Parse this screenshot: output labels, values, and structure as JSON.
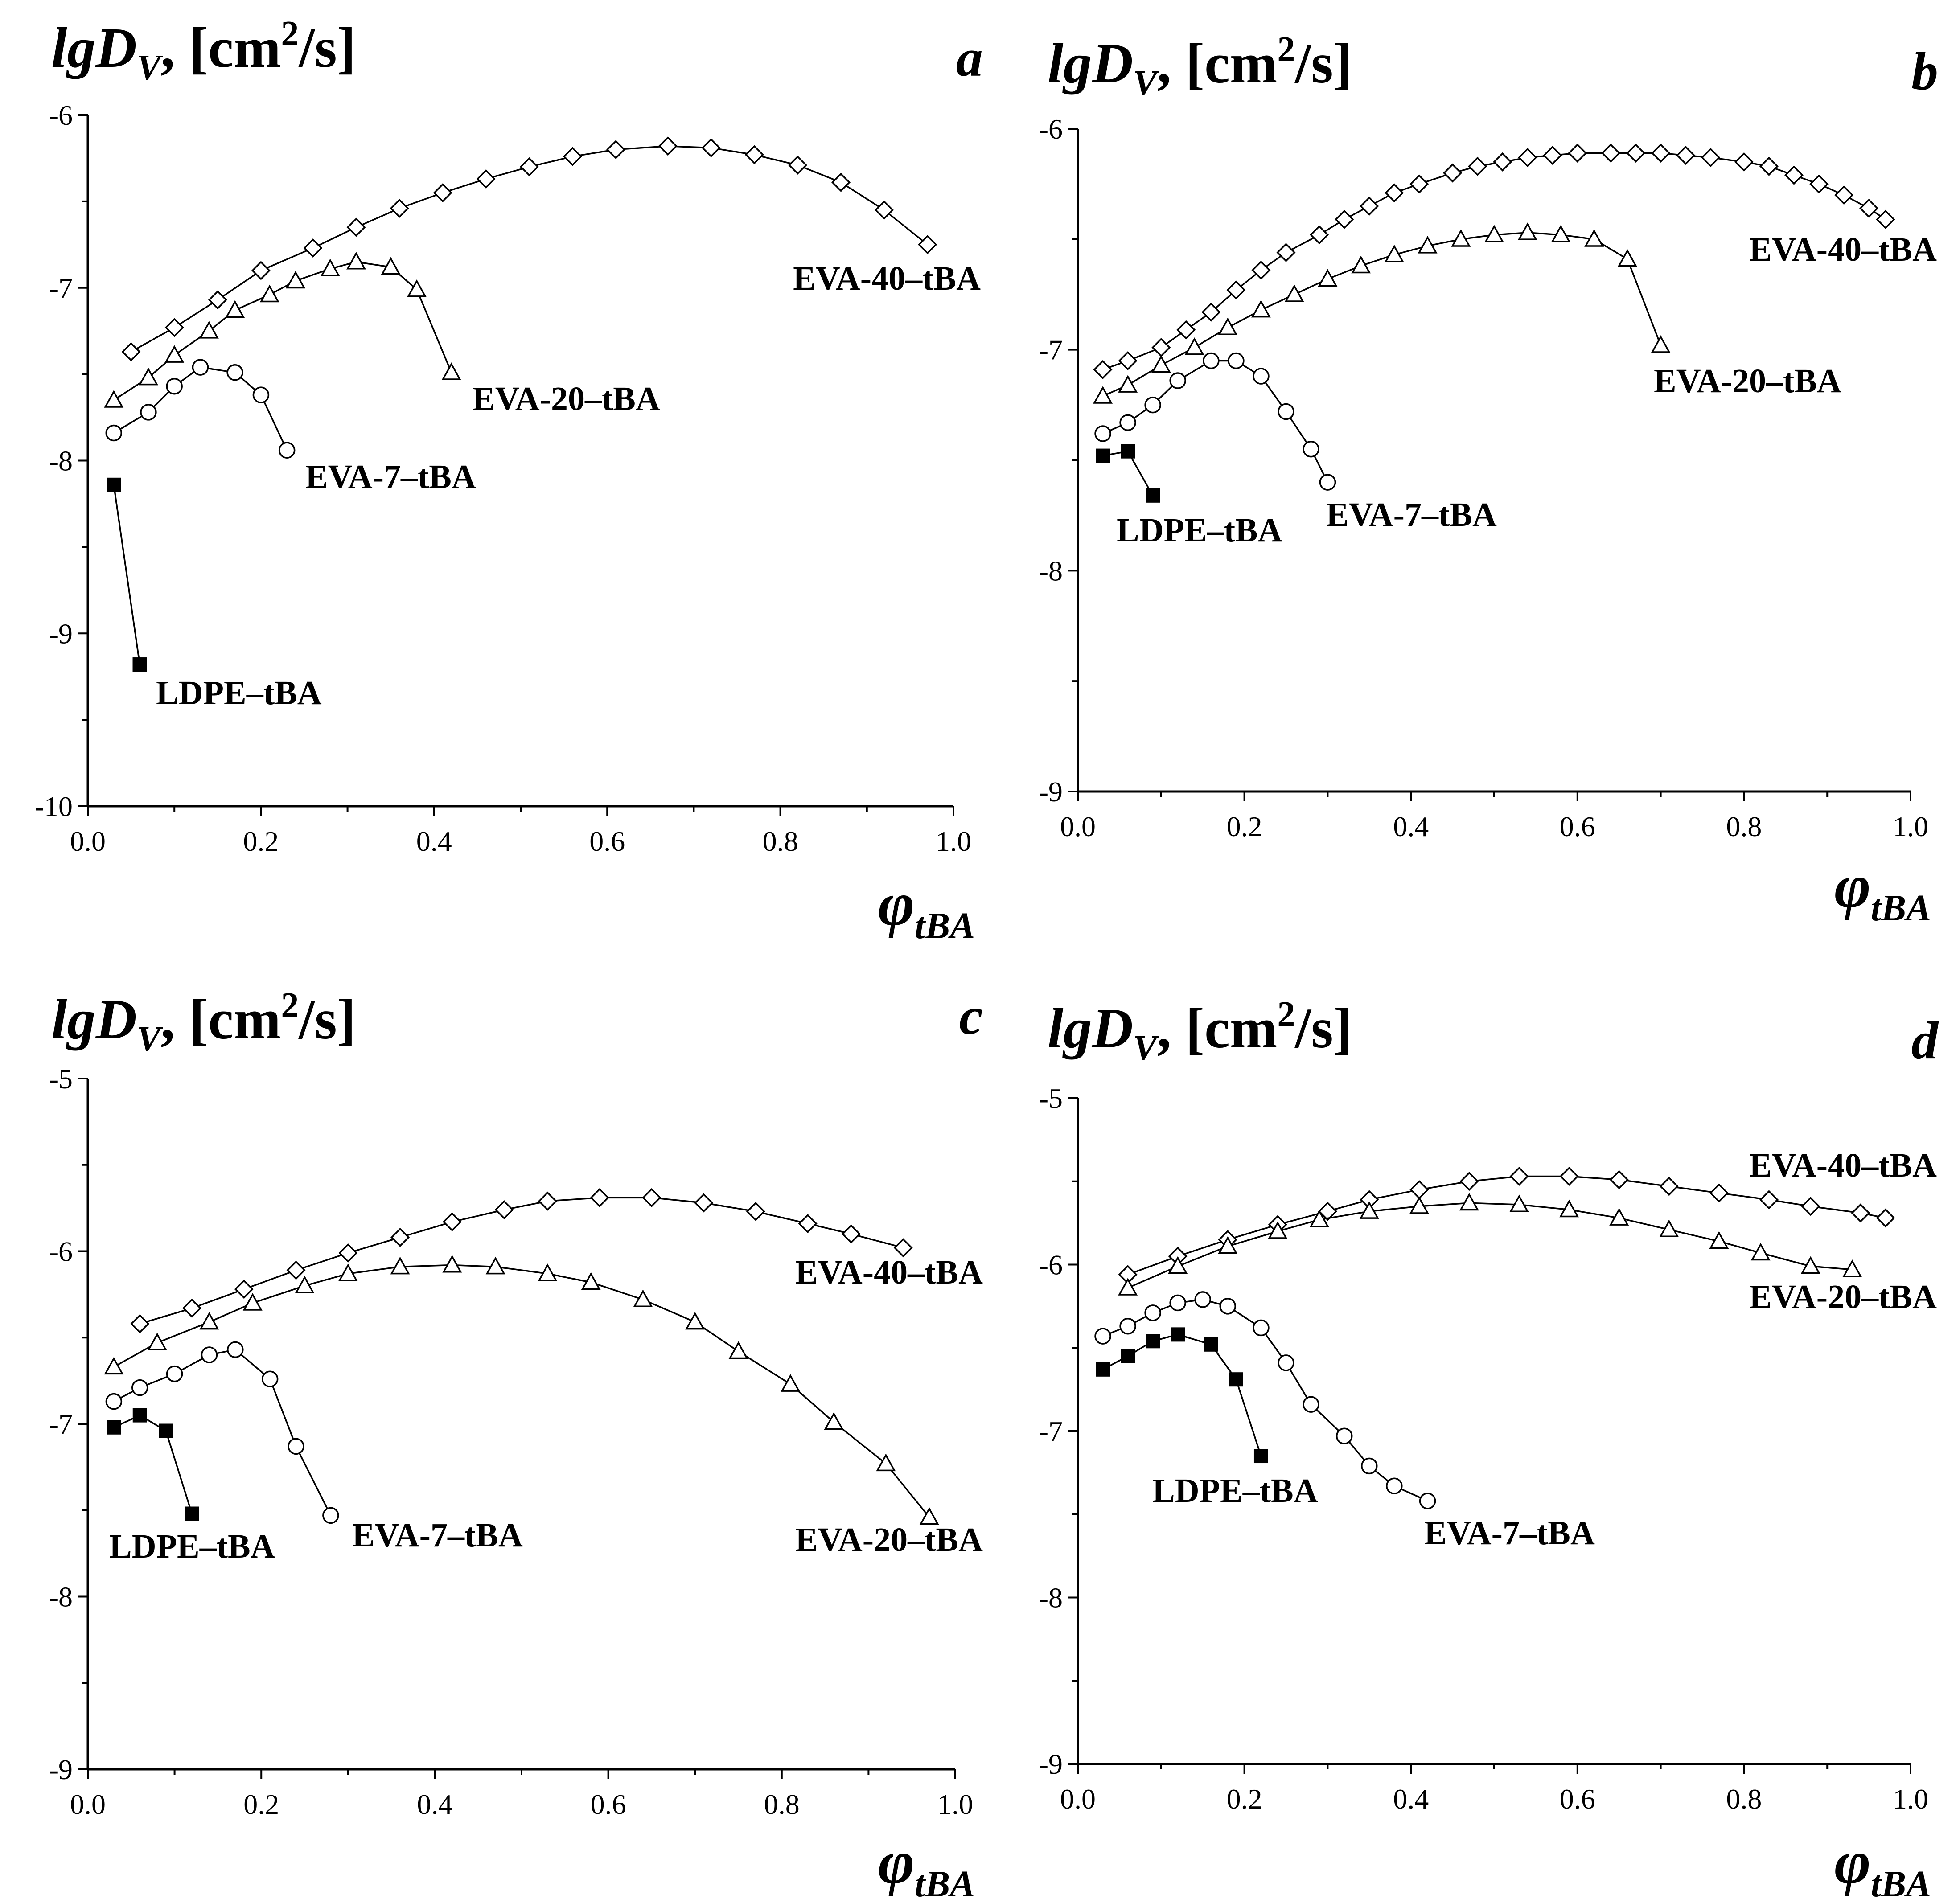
{
  "figure": {
    "x_symbol": "φ",
    "x_subscript": "tBA"
  },
  "chart_data": [
    {
      "type": "line",
      "panel": "a",
      "ylabel": {
        "main": "lgD",
        "sub": "V",
        "unit_open": ", [cm",
        "sup": "2",
        "unit_close": "/s]"
      },
      "xlabel": {
        "main": "φ",
        "sub": "tBA"
      },
      "xlim": [
        0.0,
        1.0
      ],
      "ylim": [
        -10,
        -6
      ],
      "xticks": [
        "0.0",
        "0.2",
        "0.4",
        "0.6",
        "0.8",
        "1.0"
      ],
      "yticks": [
        "-10",
        "-9",
        "-8",
        "-7",
        "-6"
      ],
      "series": [
        {
          "name": "EVA-40–tBA",
          "marker": "diamond",
          "x": [
            0.05,
            0.1,
            0.15,
            0.2,
            0.26,
            0.31,
            0.36,
            0.41,
            0.46,
            0.51,
            0.56,
            0.61,
            0.67,
            0.72,
            0.77,
            0.82,
            0.87,
            0.92,
            0.97
          ],
          "y": [
            -7.37,
            -7.23,
            -7.07,
            -6.9,
            -6.77,
            -6.65,
            -6.54,
            -6.45,
            -6.37,
            -6.3,
            -6.24,
            -6.2,
            -6.18,
            -6.19,
            -6.23,
            -6.29,
            -6.39,
            -6.55,
            -6.75
          ]
        },
        {
          "name": "EVA-20–tBA",
          "marker": "triangle",
          "x": [
            0.03,
            0.07,
            0.1,
            0.14,
            0.17,
            0.21,
            0.24,
            0.28,
            0.31,
            0.35,
            0.38,
            0.42
          ],
          "y": [
            -7.65,
            -7.52,
            -7.39,
            -7.25,
            -7.13,
            -7.04,
            -6.96,
            -6.89,
            -6.85,
            -6.88,
            -7.01,
            -7.49
          ]
        },
        {
          "name": "EVA-7–tBA",
          "marker": "circle",
          "x": [
            0.03,
            0.07,
            0.1,
            0.13,
            0.17,
            0.2,
            0.23
          ],
          "y": [
            -7.84,
            -7.72,
            -7.57,
            -7.46,
            -7.49,
            -7.62,
            -7.94
          ]
        },
        {
          "name": "LDPE–tBA",
          "marker": "square-filled",
          "x": [
            0.03,
            0.06
          ],
          "y": [
            -8.14,
            -9.18
          ]
        }
      ]
    },
    {
      "type": "line",
      "panel": "b",
      "ylabel": {
        "main": "lgD",
        "sub": "V",
        "unit_open": ", [cm",
        "sup": "2",
        "unit_close": "/s]"
      },
      "xlabel": {
        "main": "φ",
        "sub": "tBA"
      },
      "xlim": [
        0.0,
        1.0
      ],
      "ylim": [
        -9,
        -6
      ],
      "xticks": [
        "0.0",
        "0.2",
        "0.4",
        "0.6",
        "0.8",
        "1.0"
      ],
      "yticks": [
        "-9",
        "-8",
        "-7",
        "-6"
      ],
      "series": [
        {
          "name": "EVA-40–tBA",
          "marker": "diamond",
          "x": [
            0.03,
            0.06,
            0.1,
            0.13,
            0.16,
            0.19,
            0.22,
            0.25,
            0.29,
            0.32,
            0.35,
            0.38,
            0.41,
            0.45,
            0.48,
            0.51,
            0.54,
            0.57,
            0.6,
            0.64,
            0.67,
            0.7,
            0.73,
            0.76,
            0.8,
            0.83,
            0.86,
            0.89,
            0.92,
            0.95,
            0.97
          ],
          "y": [
            -7.09,
            -7.05,
            -6.99,
            -6.91,
            -6.83,
            -6.73,
            -6.64,
            -6.56,
            -6.48,
            -6.41,
            -6.35,
            -6.29,
            -6.25,
            -6.2,
            -6.17,
            -6.15,
            -6.13,
            -6.12,
            -6.11,
            -6.11,
            -6.11,
            -6.11,
            -6.12,
            -6.13,
            -6.15,
            -6.17,
            -6.21,
            -6.25,
            -6.3,
            -6.36,
            -6.41
          ]
        },
        {
          "name": "EVA-20–tBA",
          "marker": "triangle",
          "x": [
            0.03,
            0.06,
            0.1,
            0.14,
            0.18,
            0.22,
            0.26,
            0.3,
            0.34,
            0.38,
            0.42,
            0.46,
            0.5,
            0.54,
            0.58,
            0.62,
            0.66,
            0.7
          ],
          "y": [
            -7.21,
            -7.16,
            -7.07,
            -6.99,
            -6.9,
            -6.82,
            -6.75,
            -6.68,
            -6.62,
            -6.57,
            -6.53,
            -6.5,
            -6.48,
            -6.47,
            -6.48,
            -6.5,
            -6.59,
            -6.98
          ]
        },
        {
          "name": "EVA-7–tBA",
          "marker": "circle",
          "x": [
            0.03,
            0.06,
            0.09,
            0.12,
            0.16,
            0.19,
            0.22,
            0.25,
            0.28,
            0.3
          ],
          "y": [
            -7.38,
            -7.33,
            -7.25,
            -7.14,
            -7.05,
            -7.05,
            -7.12,
            -7.28,
            -7.45,
            -7.6
          ]
        },
        {
          "name": "LDPE–tBA",
          "marker": "square-filled",
          "x": [
            0.03,
            0.06,
            0.09
          ],
          "y": [
            -7.48,
            -7.46,
            -7.66
          ]
        }
      ]
    },
    {
      "type": "line",
      "panel": "c",
      "ylabel": {
        "main": "lgD",
        "sub": "V",
        "unit_open": ", [cm",
        "sup": "2",
        "unit_close": "/s]"
      },
      "xlabel": {
        "main": "φ",
        "sub": "tBA"
      },
      "xlim": [
        0.0,
        1.0
      ],
      "ylim": [
        -9,
        -5
      ],
      "xticks": [
        "0.0",
        "0.2",
        "0.4",
        "0.6",
        "0.8",
        "1.0"
      ],
      "yticks": [
        "-9",
        "-8",
        "-7",
        "-6",
        "-5"
      ],
      "series": [
        {
          "name": "EVA-40–tBA",
          "marker": "diamond",
          "x": [
            0.06,
            0.12,
            0.18,
            0.24,
            0.3,
            0.36,
            0.42,
            0.48,
            0.53,
            0.59,
            0.65,
            0.71,
            0.77,
            0.83,
            0.88,
            0.94
          ],
          "y": [
            -6.42,
            -6.33,
            -6.22,
            -6.11,
            -6.01,
            -5.92,
            -5.83,
            -5.76,
            -5.71,
            -5.69,
            -5.69,
            -5.72,
            -5.77,
            -5.84,
            -5.9,
            -5.98
          ]
        },
        {
          "name": "EVA-20–tBA",
          "marker": "triangle",
          "x": [
            0.03,
            0.08,
            0.14,
            0.19,
            0.25,
            0.3,
            0.36,
            0.42,
            0.47,
            0.53,
            0.58,
            0.64,
            0.7,
            0.75,
            0.81,
            0.86,
            0.92,
            0.97
          ],
          "y": [
            -6.67,
            -6.53,
            -6.41,
            -6.3,
            -6.2,
            -6.13,
            -6.09,
            -6.08,
            -6.09,
            -6.13,
            -6.18,
            -6.28,
            -6.41,
            -6.58,
            -6.77,
            -6.99,
            -7.23,
            -7.54
          ]
        },
        {
          "name": "EVA-7–tBA",
          "marker": "circle",
          "x": [
            0.03,
            0.06,
            0.1,
            0.14,
            0.17,
            0.21,
            0.24,
            0.28
          ],
          "y": [
            -6.87,
            -6.79,
            -6.71,
            -6.6,
            -6.57,
            -6.74,
            -7.13,
            -7.53
          ]
        },
        {
          "name": "LDPE–tBA",
          "marker": "square-filled",
          "x": [
            0.03,
            0.06,
            0.09,
            0.12
          ],
          "y": [
            -7.02,
            -6.95,
            -7.04,
            -7.52
          ]
        }
      ]
    },
    {
      "type": "line",
      "panel": "d",
      "ylabel": {
        "main": "lgD",
        "sub": "V",
        "unit_open": ", [cm",
        "sup": "2",
        "unit_close": "/s]"
      },
      "xlabel": {
        "main": "φ",
        "sub": "tBA"
      },
      "xlim": [
        0.0,
        1.0
      ],
      "ylim": [
        -9,
        -5
      ],
      "xticks": [
        "0.0",
        "0.2",
        "0.4",
        "0.6",
        "0.8",
        "1.0"
      ],
      "yticks": [
        "-9",
        "-8",
        "-7",
        "-6",
        "-5"
      ],
      "series": [
        {
          "name": "EVA-40–tBA",
          "marker": "diamond",
          "x": [
            0.06,
            0.12,
            0.18,
            0.24,
            0.3,
            0.35,
            0.41,
            0.47,
            0.53,
            0.59,
            0.65,
            0.71,
            0.77,
            0.83,
            0.88,
            0.94,
            0.97
          ],
          "y": [
            -6.06,
            -5.95,
            -5.85,
            -5.76,
            -5.68,
            -5.61,
            -5.55,
            -5.5,
            -5.47,
            -5.47,
            -5.49,
            -5.53,
            -5.57,
            -5.61,
            -5.65,
            -5.69,
            -5.72
          ]
        },
        {
          "name": "EVA-20–tBA",
          "marker": "triangle",
          "x": [
            0.06,
            0.12,
            0.18,
            0.24,
            0.29,
            0.35,
            0.41,
            0.47,
            0.53,
            0.59,
            0.65,
            0.71,
            0.77,
            0.82,
            0.88,
            0.93
          ],
          "y": [
            -6.14,
            -6.01,
            -5.89,
            -5.8,
            -5.73,
            -5.68,
            -5.65,
            -5.63,
            -5.64,
            -5.67,
            -5.72,
            -5.79,
            -5.86,
            -5.93,
            -6.01,
            -6.03
          ]
        },
        {
          "name": "EVA-7–tBA",
          "marker": "circle",
          "x": [
            0.03,
            0.06,
            0.09,
            0.12,
            0.15,
            0.18,
            0.22,
            0.25,
            0.28,
            0.32,
            0.35,
            0.38,
            0.42
          ],
          "y": [
            -6.43,
            -6.37,
            -6.29,
            -6.23,
            -6.21,
            -6.25,
            -6.38,
            -6.59,
            -6.84,
            -7.03,
            -7.21,
            -7.33,
            -7.42
          ]
        },
        {
          "name": "LDPE–tBA",
          "marker": "square-filled",
          "x": [
            0.03,
            0.06,
            0.09,
            0.12,
            0.16,
            0.19,
            0.22
          ],
          "y": [
            -6.63,
            -6.55,
            -6.46,
            -6.42,
            -6.48,
            -6.69,
            -7.15
          ]
        }
      ]
    }
  ]
}
